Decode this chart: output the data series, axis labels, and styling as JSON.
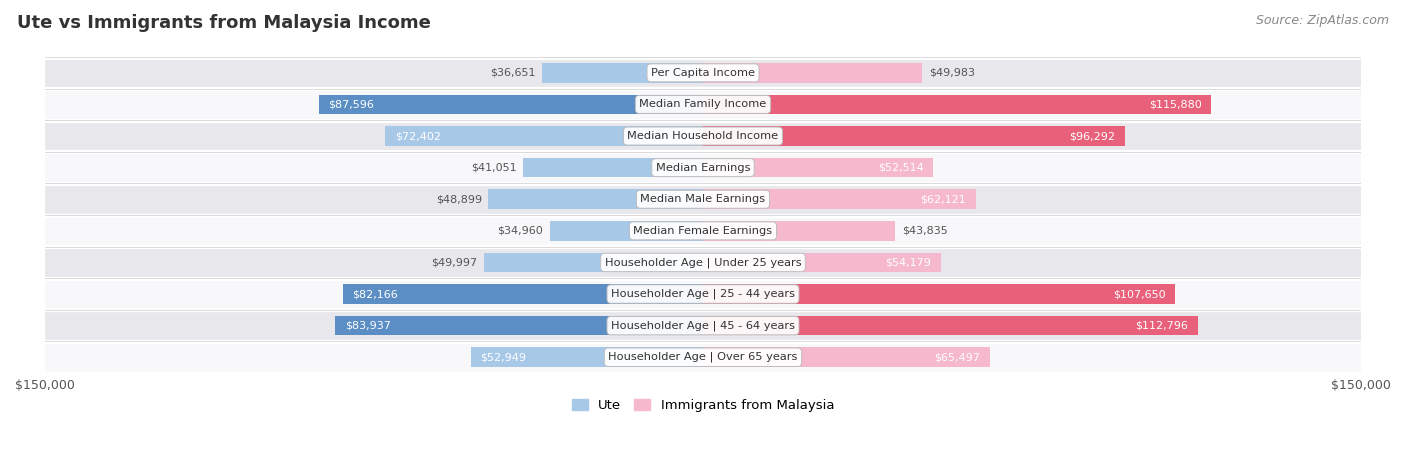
{
  "title": "Ute vs Immigrants from Malaysia Income",
  "source": "Source: ZipAtlas.com",
  "categories": [
    "Per Capita Income",
    "Median Family Income",
    "Median Household Income",
    "Median Earnings",
    "Median Male Earnings",
    "Median Female Earnings",
    "Householder Age | Under 25 years",
    "Householder Age | 25 - 44 years",
    "Householder Age | 45 - 64 years",
    "Householder Age | Over 65 years"
  ],
  "ute_values": [
    36651,
    87596,
    72402,
    41051,
    48899,
    34960,
    49997,
    82166,
    83937,
    52949
  ],
  "imm_values": [
    49983,
    115880,
    96292,
    52514,
    62121,
    43835,
    54179,
    107650,
    112796,
    65497
  ],
  "max_value": 150000,
  "ute_color_light": "#a8c8e8",
  "ute_color_dark": "#5b8ec4",
  "imm_color_light": "#f5b8cc",
  "imm_color_dark": "#e8607a",
  "ute_label": "Ute",
  "imm_label": "Immigrants from Malaysia",
  "row_bg_gray": "#e8e8ec",
  "row_bg_white": "#f8f8fa",
  "axis_label_left": "$150,000",
  "axis_label_right": "$150,000",
  "value_outside_color": "#555555",
  "value_inside_color": "#ffffff",
  "inside_threshold": 0.35
}
